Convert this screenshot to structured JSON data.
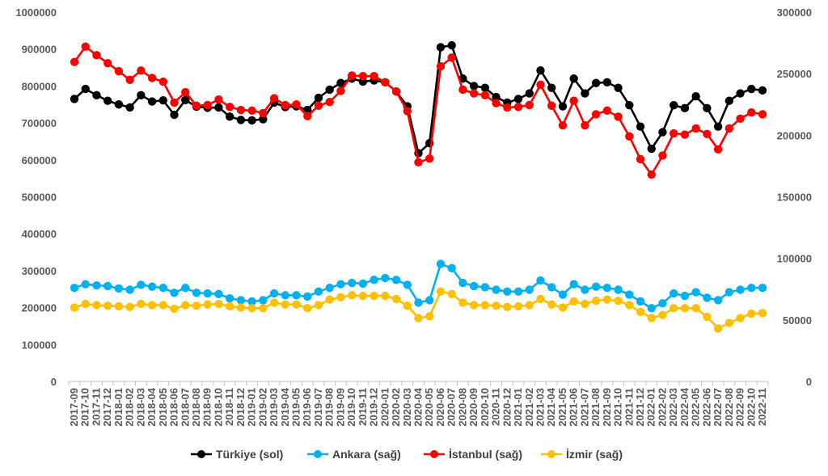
{
  "chart_data": {
    "type": "line",
    "title": "",
    "xlabel": "",
    "ylabel_left": "",
    "ylabel_right": "",
    "grid": false,
    "legend_position": "bottom",
    "y_left": {
      "min": 0,
      "max": 1000000,
      "step": 100000,
      "ticks": [
        "0",
        "100000",
        "200000",
        "300000",
        "400000",
        "500000",
        "600000",
        "700000",
        "800000",
        "900000",
        "1000000"
      ]
    },
    "y_right": {
      "min": 0,
      "max": 300000,
      "step": 50000,
      "ticks": [
        "0",
        "50000",
        "100000",
        "150000",
        "200000",
        "250000",
        "300000"
      ]
    },
    "categories": [
      "2017-09",
      "2017-10",
      "2017-11",
      "2017-12",
      "2018-01",
      "2018-02",
      "2018-03",
      "2018-04",
      "2018-05",
      "2018-06",
      "2018-07",
      "2018-08",
      "2018-09",
      "2018-10",
      "2018-11",
      "2018-12",
      "2019-01",
      "2019-02",
      "2019-03",
      "2019-04",
      "2019-05",
      "2019-06",
      "2019-07",
      "2019-08",
      "2019-09",
      "2019-10",
      "2019-11",
      "2019-12",
      "2020-01",
      "2020-02",
      "2020-03",
      "2020-04",
      "2020-05",
      "2020-06",
      "2020-07",
      "2020-08",
      "2020-09",
      "2020-10",
      "2020-11",
      "2020-12",
      "2021-01",
      "2021-02",
      "2021-03",
      "2021-04",
      "2021-05",
      "2021-06",
      "2021-07",
      "2021-08",
      "2021-09",
      "2021-10",
      "2021-11",
      "2021-12",
      "2022-01",
      "2022-02",
      "2022-03",
      "2022-04",
      "2022-05",
      "2022-06",
      "2022-07",
      "2022-08",
      "2022-09",
      "2022-10",
      "2022-11"
    ],
    "series": [
      {
        "name": "Türkiye (sol)",
        "axis": "left",
        "color": "#000000",
        "values": [
          765000,
          792000,
          775000,
          760000,
          750000,
          742000,
          775000,
          758000,
          761000,
          722000,
          762000,
          744000,
          741000,
          742000,
          717000,
          708000,
          707000,
          710000,
          755000,
          743000,
          745000,
          735000,
          768000,
          790000,
          808000,
          820000,
          812000,
          815000,
          810000,
          785000,
          745000,
          618000,
          645000,
          905000,
          910000,
          820000,
          800000,
          795000,
          770000,
          755000,
          765000,
          780000,
          842000,
          795000,
          745000,
          820000,
          780000,
          808000,
          810000,
          795000,
          748000,
          690000,
          630000,
          675000,
          748000,
          740000,
          772000,
          740000,
          690000,
          760000,
          780000,
          792000,
          788000
        ]
      },
      {
        "name": "Ankara (sağ)",
        "axis": "right",
        "color": "#00B0F0",
        "values": [
          76000,
          79000,
          78000,
          77500,
          75500,
          74500,
          78500,
          77000,
          76000,
          72000,
          76000,
          72000,
          71500,
          71000,
          67500,
          66000,
          65000,
          66000,
          71500,
          70000,
          70000,
          69000,
          73000,
          76000,
          79000,
          80000,
          79500,
          82500,
          84000,
          82500,
          78500,
          64000,
          66000,
          95500,
          92000,
          80000,
          77500,
          76500,
          74500,
          73000,
          73000,
          74500,
          82000,
          76500,
          70500,
          79000,
          74500,
          77000,
          76000,
          74500,
          70500,
          65000,
          59500,
          63500,
          71500,
          69500,
          72500,
          68000,
          66000,
          72500,
          74500,
          76000,
          76000
        ]
      },
      {
        "name": "İstanbul (sağ)",
        "axis": "right",
        "color": "#FF0000",
        "values": [
          259500,
          272000,
          265000,
          258500,
          252000,
          245000,
          252500,
          246500,
          243500,
          226500,
          235000,
          224000,
          224500,
          229000,
          223000,
          220500,
          220000,
          218000,
          230000,
          224500,
          225000,
          215500,
          224000,
          227000,
          236000,
          248500,
          248000,
          248000,
          243000,
          235500,
          219500,
          178000,
          181000,
          256000,
          263000,
          237000,
          234000,
          232500,
          226000,
          222500,
          223000,
          224500,
          241000,
          224000,
          208000,
          228000,
          208000,
          217000,
          220000,
          215000,
          199000,
          180500,
          168000,
          183500,
          201500,
          200500,
          205500,
          201000,
          188500,
          205500,
          213500,
          218500,
          217000
        ]
      },
      {
        "name": "İzmir (sağ)",
        "axis": "right",
        "color": "#FFC000",
        "values": [
          60000,
          63000,
          62000,
          61500,
          61000,
          60500,
          63000,
          62000,
          62000,
          59000,
          62000,
          61500,
          62500,
          63000,
          61000,
          60000,
          59500,
          59500,
          64000,
          62500,
          62500,
          59500,
          62000,
          66500,
          68500,
          70000,
          69500,
          69500,
          69500,
          67000,
          61500,
          51500,
          53000,
          73000,
          71000,
          64000,
          62000,
          62000,
          61500,
          60500,
          61000,
          62000,
          67000,
          62500,
          60000,
          65000,
          63000,
          65500,
          66500,
          65500,
          62000,
          56500,
          51500,
          54000,
          59500,
          59500,
          59500,
          52500,
          43000,
          47500,
          51500,
          55000,
          55500
        ]
      }
    ]
  }
}
